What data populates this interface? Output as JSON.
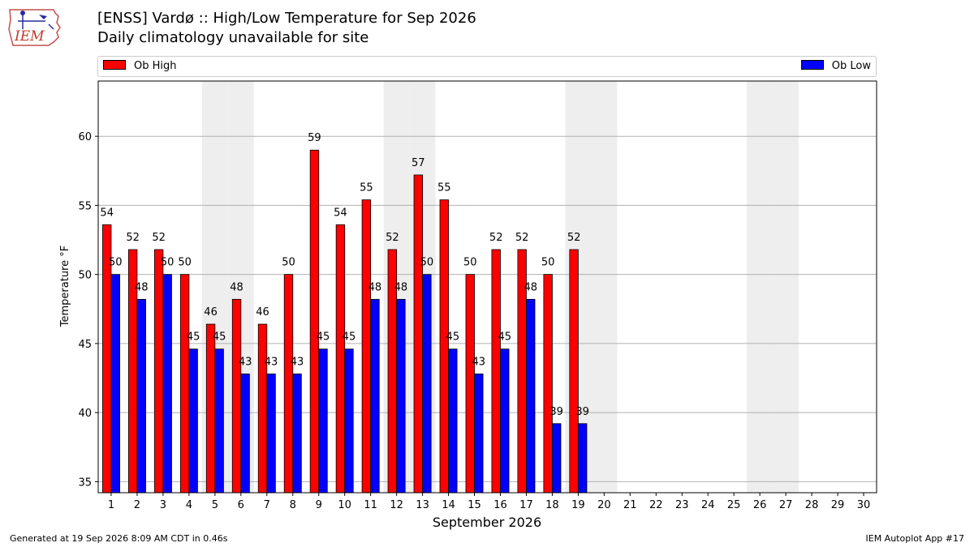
{
  "header": {
    "title": "[ENSS] Vardø :: High/Low Temperature for Sep 2026",
    "subtitle": "Daily climatology unavailable for site"
  },
  "logo": {
    "text": "IEM"
  },
  "footer": {
    "generated": "Generated at 19 Sep 2026 8:09 AM CDT in 0.46s",
    "app": "IEM Autoplot App #17"
  },
  "colors": {
    "high": "#ff0000",
    "low": "#0000ff",
    "weekend_band": "#eeeeee",
    "grid": "#b0b0b0"
  },
  "chart_data": {
    "type": "bar",
    "xlabel": "September 2026",
    "ylabel": "Temperature °F",
    "ylim": [
      34.2,
      64.0
    ],
    "yticks": [
      35,
      40,
      45,
      50,
      55,
      60
    ],
    "grid": "horizontal",
    "legend": "top",
    "days": [
      1,
      2,
      3,
      4,
      5,
      6,
      7,
      8,
      9,
      10,
      11,
      12,
      13,
      14,
      15,
      16,
      17,
      18,
      19,
      20,
      21,
      22,
      23,
      24,
      25,
      26,
      27,
      28,
      29,
      30
    ],
    "shaded_days": [
      5,
      6,
      12,
      13,
      19,
      20,
      26,
      27
    ],
    "series": [
      {
        "name": "Ob High",
        "color": "#ff0000",
        "values": [
          53.6,
          51.8,
          51.8,
          50.0,
          46.4,
          48.2,
          46.4,
          50.0,
          59.0,
          53.6,
          55.4,
          51.8,
          57.2,
          55.4,
          50.0,
          51.8,
          51.8,
          50.0,
          51.8
        ],
        "labels": [
          "54",
          "52",
          "52",
          "50",
          "46",
          "48",
          "46",
          "50",
          "59",
          "54",
          "55",
          "52",
          "57",
          "55",
          "50",
          "52",
          "52",
          "50",
          "52"
        ]
      },
      {
        "name": "Ob Low",
        "color": "#0000ff",
        "values": [
          50.0,
          48.2,
          50.0,
          44.6,
          44.6,
          42.8,
          42.8,
          42.8,
          44.6,
          44.6,
          48.2,
          48.2,
          50.0,
          44.6,
          42.8,
          44.6,
          48.2,
          39.2,
          39.2
        ],
        "labels": [
          "50",
          "48",
          "50",
          "45",
          "45",
          "43",
          "43",
          "43",
          "45",
          "45",
          "48",
          "48",
          "50",
          "45",
          "43",
          "45",
          "48",
          "39",
          "39"
        ]
      }
    ]
  }
}
